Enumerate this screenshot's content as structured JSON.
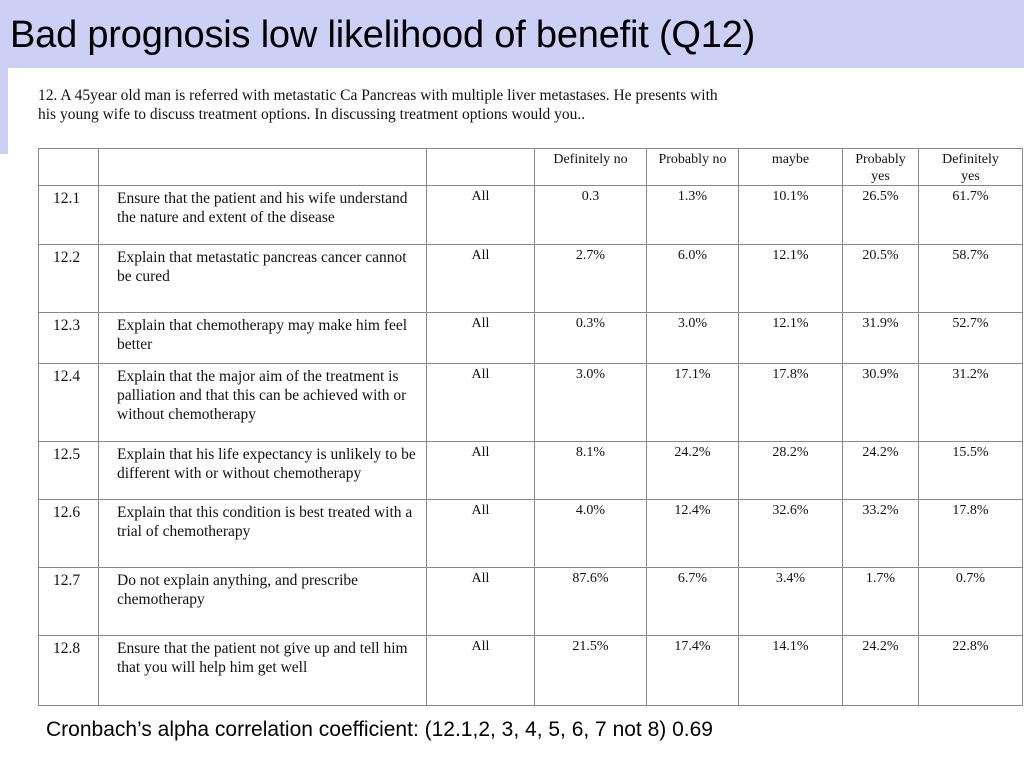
{
  "slide": {
    "title": "Bad prognosis low likelihood of benefit (Q12)",
    "footnote": "Cronbach’s alpha correlation coefficient:  (12.1,2, 3, 4, 5, 6, 7 not 8)  0.69"
  },
  "question": {
    "line1": "12.  A 45year old man is referred with metastatic Ca Pancreas with multiple liver metastases. He presents with",
    "line2": "his young wife to discuss treatment options. In discussing treatment options would you.."
  },
  "table": {
    "headers": {
      "definitely_no": "Definitely no",
      "probably_no": "Probably no",
      "maybe": "maybe",
      "probably_yes_1": "Probably",
      "probably_yes_2": "yes",
      "definitely_yes_1": "Definitely",
      "definitely_yes_2": "yes"
    },
    "rows": [
      {
        "num": "12.1",
        "text": "Ensure that the patient and his wife understand the nature and extent of the disease",
        "group": "All",
        "dno": "0.3",
        "pno": "1.3%",
        "maybe": "10.1%",
        "pyes": "26.5%",
        "dyes": "61.7%"
      },
      {
        "num": "12.2",
        "text": "Explain that metastatic pancreas cancer cannot be cured",
        "group": "All",
        "dno": "2.7%",
        "pno": "6.0%",
        "maybe": "12.1%",
        "pyes": "20.5%",
        "dyes": "58.7%"
      },
      {
        "num": "12.3",
        "text": "Explain that chemotherapy may make him feel better",
        "group": "All",
        "dno": "0.3%",
        "pno": "3.0%",
        "maybe": "12.1%",
        "pyes": "31.9%",
        "dyes": "52.7%"
      },
      {
        "num": "12.4",
        "text": "Explain that the major aim  of the treatment is palliation and that this can be achieved with or without chemotherapy",
        "group": "All",
        "dno": "3.0%",
        "pno": "17.1%",
        "maybe": "17.8%",
        "pyes": "30.9%",
        "dyes": "31.2%"
      },
      {
        "num": "12.5",
        "text": "Explain that his life expectancy is unlikely to be different with or without chemotherapy",
        "group": "All",
        "dno": "8.1%",
        "pno": "24.2%",
        "maybe": "28.2%",
        "pyes": "24.2%",
        "dyes": "15.5%"
      },
      {
        "num": "12.6",
        "text": "Explain that this condition is best treated with a trial of chemotherapy",
        "group": "All",
        "dno": "4.0%",
        "pno": "12.4%",
        "maybe": "32.6%",
        "pyes": "33.2%",
        "dyes": "17.8%"
      },
      {
        "num": "12.7",
        "text": "Do not explain anything, and prescribe chemotherapy",
        "group": "All",
        "dno": "87.6%",
        "pno": "6.7%",
        "maybe": "3.4%",
        "pyes": "1.7%",
        "dyes": "0.7%"
      },
      {
        "num": "12.8",
        "text": "Ensure that the patient not give up and tell him that you will help him get well",
        "group": "All",
        "dno": "21.5%",
        "pno": "17.4%",
        "maybe": "14.1%",
        "pyes": "24.2%",
        "dyes": "22.8%"
      }
    ]
  }
}
